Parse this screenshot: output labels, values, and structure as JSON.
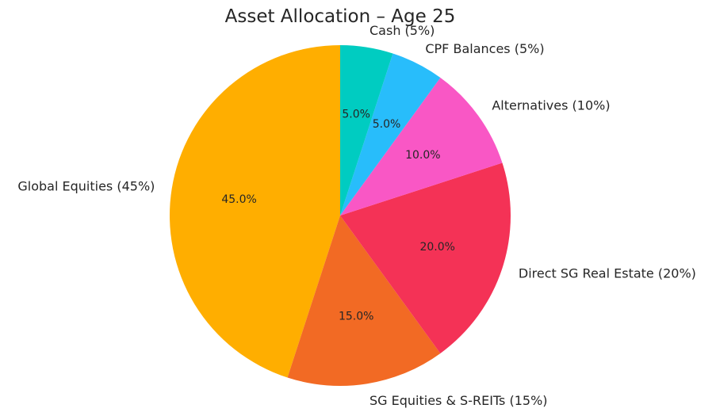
{
  "chart_data": {
    "type": "pie",
    "title": "Asset Allocation – Age 25",
    "start_angle_deg": 90,
    "direction": "counterclockwise",
    "slices": [
      {
        "label": "Global Equities (45%)",
        "value": 45,
        "pct_label": "45.0%",
        "color": "#FFAE00"
      },
      {
        "label": "SG Equities & S-REITs (15%)",
        "value": 15,
        "pct_label": "15.0%",
        "color": "#F26A24"
      },
      {
        "label": "Direct SG Real Estate (20%)",
        "value": 20,
        "pct_label": "20.0%",
        "color": "#F43256"
      },
      {
        "label": "Alternatives (10%)",
        "value": 10,
        "pct_label": "10.0%",
        "color": "#F957C5"
      },
      {
        "label": "CPF Balances (5%)",
        "value": 5,
        "pct_label": "5.0%",
        "color": "#28BDFB"
      },
      {
        "label": "Cash (5%)",
        "value": 5,
        "pct_label": "5.0%",
        "color": "#00CCC1"
      }
    ]
  }
}
